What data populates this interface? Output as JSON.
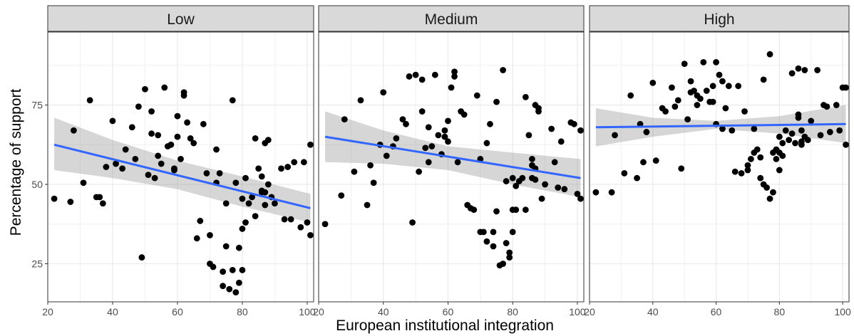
{
  "chart_data": {
    "type": "scatter",
    "xlabel": "European institutional integration",
    "ylabel": "Percentage of support",
    "xlim": [
      20,
      102
    ],
    "ylim": [
      13,
      98
    ],
    "x_ticks": [
      20,
      40,
      60,
      80,
      100
    ],
    "y_ticks": [
      25,
      50,
      75
    ],
    "x_tick_labels": [
      "20",
      "40",
      "60",
      "80",
      "100"
    ],
    "y_tick_labels": [
      "25",
      "50",
      "75"
    ],
    "grid": true,
    "point_color": "#000000",
    "fit_color": "#3366FF",
    "band_color": "#999999",
    "panels": [
      {
        "label": "Low",
        "points": [
          [
            22,
            45.5
          ],
          [
            27,
            44.5
          ],
          [
            28,
            67
          ],
          [
            31,
            50.5
          ],
          [
            33,
            76.5
          ],
          [
            35,
            46
          ],
          [
            36,
            46
          ],
          [
            37,
            44
          ],
          [
            38,
            55.5
          ],
          [
            40,
            70
          ],
          [
            41,
            56.5
          ],
          [
            43,
            55
          ],
          [
            44,
            61
          ],
          [
            46,
            68
          ],
          [
            47,
            58
          ],
          [
            48,
            74.5
          ],
          [
            49,
            27
          ],
          [
            50,
            80
          ],
          [
            51,
            53
          ],
          [
            52,
            73
          ],
          [
            52,
            66
          ],
          [
            53,
            52
          ],
          [
            54,
            65.5
          ],
          [
            54,
            59
          ],
          [
            55,
            56.5
          ],
          [
            56,
            80.5
          ],
          [
            57,
            62
          ],
          [
            58,
            62.5
          ],
          [
            59,
            55
          ],
          [
            59,
            54.5
          ],
          [
            60,
            71.5
          ],
          [
            60,
            65
          ],
          [
            61,
            58
          ],
          [
            62,
            78
          ],
          [
            62,
            79
          ],
          [
            63,
            69.5
          ],
          [
            64,
            64.5
          ],
          [
            65,
            63
          ],
          [
            66,
            33
          ],
          [
            67,
            38.5
          ],
          [
            68,
            69
          ],
          [
            69,
            53.5
          ],
          [
            70,
            34
          ],
          [
            70,
            25
          ],
          [
            71,
            24
          ],
          [
            72,
            50.5
          ],
          [
            72,
            61
          ],
          [
            73,
            53.5
          ],
          [
            74,
            18
          ],
          [
            74,
            22.5
          ],
          [
            75,
            30.5
          ],
          [
            75,
            44
          ],
          [
            76,
            17
          ],
          [
            77,
            76.5
          ],
          [
            77,
            23
          ],
          [
            78,
            50.5
          ],
          [
            78,
            16
          ],
          [
            79,
            19
          ],
          [
            79,
            30
          ],
          [
            80,
            23
          ],
          [
            80,
            45.5
          ],
          [
            80,
            36
          ],
          [
            81,
            52
          ],
          [
            81,
            38
          ],
          [
            82,
            44
          ],
          [
            83,
            46
          ],
          [
            84,
            40
          ],
          [
            84,
            64.5
          ],
          [
            85,
            55
          ],
          [
            86,
            48
          ],
          [
            86,
            52.5
          ],
          [
            86,
            47.5
          ],
          [
            87,
            47.5
          ],
          [
            87,
            63
          ],
          [
            87,
            43.5
          ],
          [
            88,
            64
          ],
          [
            88,
            50
          ],
          [
            89,
            46
          ],
          [
            90,
            44
          ],
          [
            92,
            55
          ],
          [
            93,
            39
          ],
          [
            94,
            55.5
          ],
          [
            95,
            39
          ],
          [
            96,
            57
          ],
          [
            98,
            36.5
          ],
          [
            99,
            57
          ],
          [
            100,
            38
          ],
          [
            101,
            62.5
          ],
          [
            101,
            34
          ]
        ],
        "fit": [
          [
            22,
            62.5
          ],
          [
            101,
            42.5
          ]
        ],
        "band_upper": [
          [
            22,
            71
          ],
          [
            40,
            64
          ],
          [
            60,
            57.5
          ],
          [
            80,
            52.5
          ],
          [
            101,
            47
          ]
        ],
        "band_lower": [
          [
            22,
            54.5
          ],
          [
            40,
            52
          ],
          [
            60,
            48.5
          ],
          [
            80,
            43
          ],
          [
            101,
            38
          ]
        ]
      },
      {
        "label": "Medium",
        "points": [
          [
            22,
            37.5
          ],
          [
            27,
            46.5
          ],
          [
            28,
            70.5
          ],
          [
            31,
            54
          ],
          [
            33,
            76.5
          ],
          [
            35,
            43.5
          ],
          [
            36,
            56
          ],
          [
            37,
            50.5
          ],
          [
            39,
            62.5
          ],
          [
            40,
            79
          ],
          [
            41,
            59
          ],
          [
            43,
            62
          ],
          [
            44,
            64.5
          ],
          [
            46,
            70.5
          ],
          [
            47,
            69
          ],
          [
            48,
            84
          ],
          [
            49,
            38
          ],
          [
            50,
            84.5
          ],
          [
            51,
            54
          ],
          [
            52,
            73
          ],
          [
            52,
            83
          ],
          [
            53,
            61.5
          ],
          [
            54,
            68
          ],
          [
            54,
            57
          ],
          [
            55,
            62
          ],
          [
            56,
            84.5
          ],
          [
            57,
            65.5
          ],
          [
            58,
            59.5
          ],
          [
            59,
            67
          ],
          [
            59,
            65
          ],
          [
            60,
            70
          ],
          [
            60,
            63.5
          ],
          [
            61,
            80.5
          ],
          [
            62,
            84
          ],
          [
            62,
            85.5
          ],
          [
            63,
            57
          ],
          [
            64,
            73
          ],
          [
            65,
            72
          ],
          [
            66,
            43.5
          ],
          [
            67,
            42.5
          ],
          [
            68,
            42
          ],
          [
            69,
            78
          ],
          [
            70,
            35
          ],
          [
            70,
            58
          ],
          [
            71,
            35
          ],
          [
            72,
            63
          ],
          [
            72,
            32
          ],
          [
            73,
            69
          ],
          [
            74,
            35
          ],
          [
            74,
            30.5
          ],
          [
            75,
            41.5
          ],
          [
            75,
            76
          ],
          [
            76,
            24.5
          ],
          [
            77,
            25
          ],
          [
            77,
            86
          ],
          [
            78,
            31.5
          ],
          [
            78,
            51
          ],
          [
            79,
            27
          ],
          [
            79,
            28.5
          ],
          [
            80,
            35
          ],
          [
            80,
            42
          ],
          [
            80,
            52
          ],
          [
            81,
            49.5
          ],
          [
            81,
            42
          ],
          [
            82,
            51
          ],
          [
            83,
            52
          ],
          [
            84,
            42
          ],
          [
            84,
            77.5
          ],
          [
            85,
            65.5
          ],
          [
            86,
            56
          ],
          [
            86,
            58
          ],
          [
            86,
            52
          ],
          [
            87,
            55
          ],
          [
            87,
            75
          ],
          [
            87,
            51.5
          ],
          [
            88,
            74
          ],
          [
            88,
            73
          ],
          [
            89,
            45.5
          ],
          [
            90,
            50
          ],
          [
            92,
            67.5
          ],
          [
            93,
            57
          ],
          [
            94,
            49
          ],
          [
            95,
            63.5
          ],
          [
            96,
            48.5
          ],
          [
            98,
            69.5
          ],
          [
            99,
            69
          ],
          [
            100,
            47
          ],
          [
            101,
            67
          ],
          [
            101,
            45.5
          ]
        ],
        "fit": [
          [
            22,
            65
          ],
          [
            101,
            52
          ]
        ],
        "band_upper": [
          [
            22,
            73
          ],
          [
            40,
            67
          ],
          [
            60,
            62
          ],
          [
            80,
            60
          ],
          [
            101,
            58
          ]
        ],
        "band_lower": [
          [
            22,
            57
          ],
          [
            40,
            56.5
          ],
          [
            60,
            54.5
          ],
          [
            80,
            50
          ],
          [
            101,
            46
          ]
        ]
      },
      {
        "label": "High",
        "points": [
          [
            22,
            47.5
          ],
          [
            27,
            47.5
          ],
          [
            28,
            65.5
          ],
          [
            31,
            53.5
          ],
          [
            33,
            78
          ],
          [
            35,
            52
          ],
          [
            36,
            69
          ],
          [
            37,
            57
          ],
          [
            38,
            66.5
          ],
          [
            40,
            82
          ],
          [
            41,
            57.5
          ],
          [
            43,
            74
          ],
          [
            44,
            73
          ],
          [
            46,
            80.5
          ],
          [
            47,
            74.5
          ],
          [
            48,
            76.5
          ],
          [
            49,
            55
          ],
          [
            50,
            88
          ],
          [
            51,
            70.5
          ],
          [
            52,
            82.5
          ],
          [
            52,
            79
          ],
          [
            53,
            79.5
          ],
          [
            54,
            75
          ],
          [
            54,
            78
          ],
          [
            55,
            77
          ],
          [
            56,
            88.5
          ],
          [
            57,
            79.5
          ],
          [
            58,
            76
          ],
          [
            59,
            81
          ],
          [
            59,
            76
          ],
          [
            60,
            88.5
          ],
          [
            60,
            69
          ],
          [
            61,
            84.5
          ],
          [
            62,
            82.5
          ],
          [
            62,
            67.5
          ],
          [
            63,
            74
          ],
          [
            64,
            81
          ],
          [
            65,
            67
          ],
          [
            66,
            54
          ],
          [
            67,
            81
          ],
          [
            68,
            53.5
          ],
          [
            69,
            73
          ],
          [
            70,
            56
          ],
          [
            70,
            54.5
          ],
          [
            71,
            58
          ],
          [
            72,
            67.5
          ],
          [
            72,
            60
          ],
          [
            73,
            61
          ],
          [
            74,
            52
          ],
          [
            74,
            58.5
          ],
          [
            75,
            50
          ],
          [
            75,
            83
          ],
          [
            76,
            49
          ],
          [
            77,
            45.5
          ],
          [
            77,
            91
          ],
          [
            78,
            47.5
          ],
          [
            78,
            60
          ],
          [
            79,
            58
          ],
          [
            79,
            61
          ],
          [
            80,
            65
          ],
          [
            80,
            60
          ],
          [
            80,
            54.5
          ],
          [
            81,
            63
          ],
          [
            81,
            59
          ],
          [
            82,
            67
          ],
          [
            83,
            64
          ],
          [
            84,
            66
          ],
          [
            84,
            85
          ],
          [
            85,
            63
          ],
          [
            86,
            86.5
          ],
          [
            86,
            72
          ],
          [
            86,
            71
          ],
          [
            87,
            62.5
          ],
          [
            87,
            63.5
          ],
          [
            87,
            67
          ],
          [
            88,
            86
          ],
          [
            88,
            65
          ],
          [
            89,
            64
          ],
          [
            90,
            70
          ],
          [
            92,
            86
          ],
          [
            93,
            65.5
          ],
          [
            94,
            75
          ],
          [
            95,
            74.5
          ],
          [
            96,
            66.5
          ],
          [
            98,
            75
          ],
          [
            99,
            67
          ],
          [
            100,
            80.5
          ],
          [
            101,
            80.5
          ],
          [
            101,
            62.5
          ]
        ],
        "fit": [
          [
            22,
            68
          ],
          [
            101,
            69
          ]
        ],
        "band_upper": [
          [
            22,
            74
          ],
          [
            40,
            71
          ],
          [
            60,
            70
          ],
          [
            80,
            71.5
          ],
          [
            101,
            75
          ]
        ],
        "band_lower": [
          [
            22,
            62
          ],
          [
            40,
            65
          ],
          [
            60,
            67.5
          ],
          [
            80,
            66
          ],
          [
            101,
            63
          ]
        ]
      }
    ]
  }
}
